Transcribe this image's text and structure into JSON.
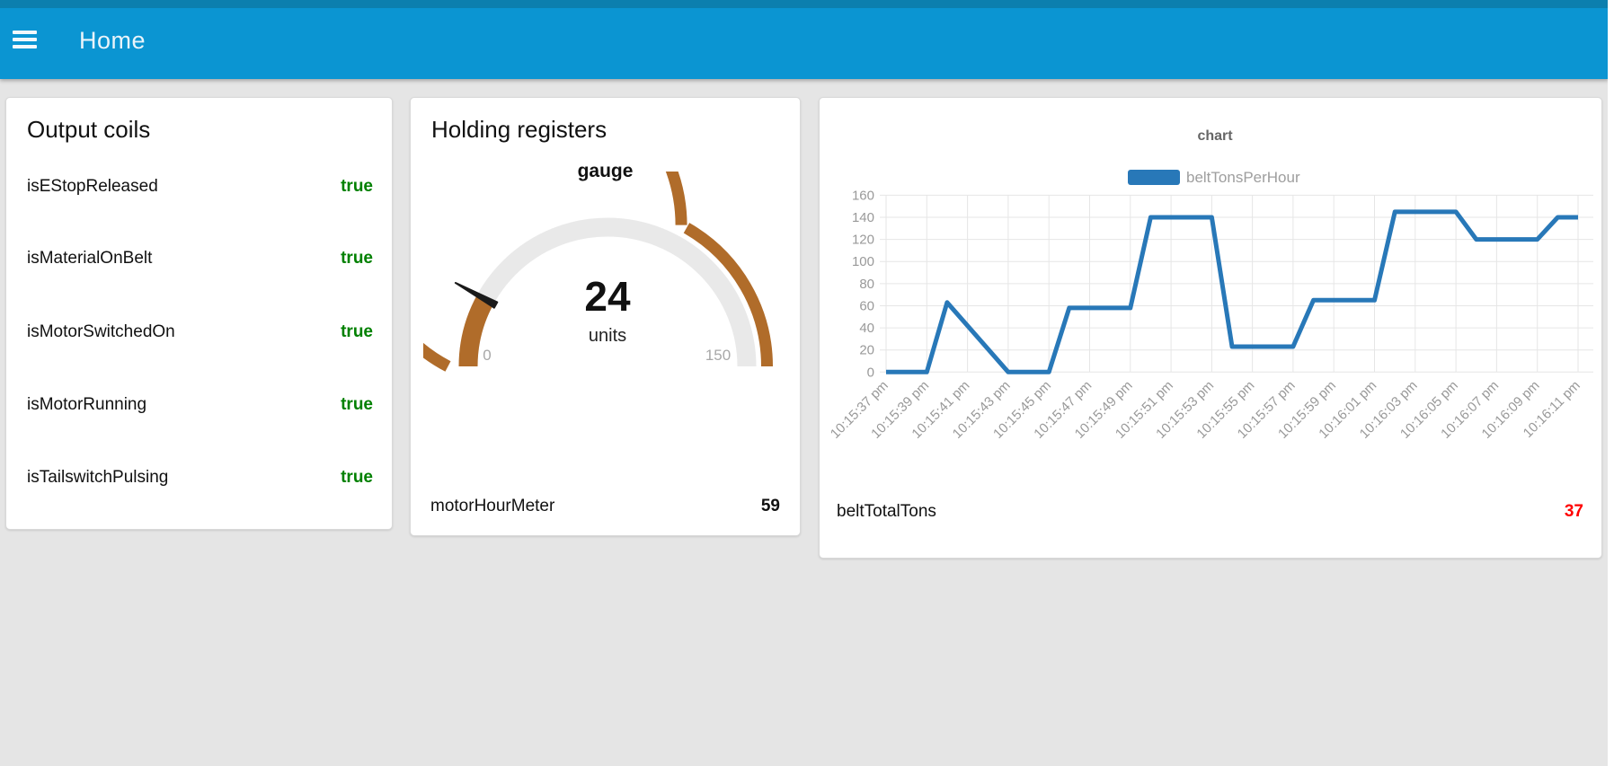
{
  "header": {
    "title": "Home"
  },
  "colors": {
    "header_blue": "#0b95d2",
    "header_strip": "#0c7fae",
    "page_bg": "#e5e5e5",
    "true_green": "#008000",
    "gauge_copper": "#b06c2a",
    "gauge_track": "#e9e9e9",
    "needle_black": "#1a1a1a",
    "chart_line": "#2878b8",
    "total_red": "#ff0000"
  },
  "cards": {
    "output_coils": {
      "title": "Output coils",
      "rows": [
        {
          "label": "isEStopReleased",
          "value": "true"
        },
        {
          "label": "isMaterialOnBelt",
          "value": "true"
        },
        {
          "label": "isMotorSwitchedOn",
          "value": "true"
        },
        {
          "label": "isMotorRunning",
          "value": "true"
        },
        {
          "label": "isTailswitchPulsing",
          "value": "true"
        }
      ]
    },
    "holding_registers": {
      "title": "Holding registers",
      "gauge": {
        "label": "gauge",
        "value": 24,
        "units": "units",
        "min": 0,
        "max": 150,
        "arc_segments": [
          [
            0,
            0.653
          ],
          [
            0.665,
            1
          ]
        ]
      },
      "meter": {
        "label": "motorHourMeter",
        "value": 59
      }
    },
    "chart_card": {
      "total": {
        "label": "beltTotalTons",
        "value": 37
      }
    }
  },
  "chart_data": {
    "type": "line",
    "title": "chart",
    "legend": [
      {
        "name": "beltTonsPerHour",
        "color": "#2878b8"
      }
    ],
    "legend_position": "top",
    "grid": true,
    "ylim": [
      0,
      160
    ],
    "y_ticks": [
      0,
      20,
      40,
      60,
      80,
      100,
      120,
      140,
      160
    ],
    "x_tick_interval_seconds": 2,
    "x_tick_labels": [
      "10:15:37 pm",
      "10:15:39 pm",
      "10:15:41 pm",
      "10:15:43 pm",
      "10:15:45 pm",
      "10:15:47 pm",
      "10:15:49 pm",
      "10:15:51 pm",
      "10:15:53 pm",
      "10:15:55 pm",
      "10:15:57 pm",
      "10:15:59 pm",
      "10:16:01 pm",
      "10:16:03 pm",
      "10:16:05 pm",
      "10:16:07 pm",
      "10:16:09 pm",
      "10:16:11 pm"
    ],
    "series": [
      {
        "name": "beltTonsPerHour",
        "points_seconds_from_first_tick": [
          [
            0,
            0
          ],
          [
            2,
            0
          ],
          [
            3,
            63
          ],
          [
            6,
            0
          ],
          [
            8,
            0
          ],
          [
            9,
            58
          ],
          [
            12,
            58
          ],
          [
            13,
            140
          ],
          [
            16,
            140
          ],
          [
            17,
            23
          ],
          [
            20,
            23
          ],
          [
            21,
            65
          ],
          [
            24,
            65
          ],
          [
            25,
            145
          ],
          [
            28,
            145
          ],
          [
            29,
            120
          ],
          [
            32,
            120
          ],
          [
            33,
            140
          ],
          [
            34,
            140
          ]
        ]
      }
    ]
  }
}
